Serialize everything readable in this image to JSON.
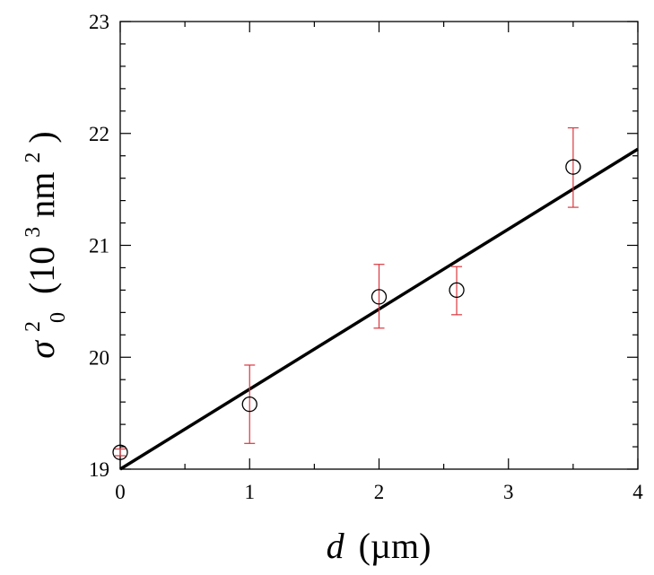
{
  "chart_data": {
    "type": "scatter",
    "title": "",
    "xlabel": {
      "var": "d",
      "unit": "(µm)"
    },
    "ylabel": {
      "base": "σ",
      "sub": "0",
      "sup": "2",
      "unit_open": "(10",
      "unit_exp": "3",
      "unit_mid": " nm",
      "unit_exp2": "2",
      "unit_close": ")"
    },
    "xlim": [
      0,
      4
    ],
    "ylim": [
      19,
      23
    ],
    "xticks": [
      0,
      1,
      2,
      3,
      4
    ],
    "yticks": [
      19,
      20,
      21,
      22,
      23
    ],
    "xtick_labels": [
      "0",
      "1",
      "2",
      "3",
      "4"
    ],
    "ytick_labels": [
      "19",
      "20",
      "21",
      "22",
      "23"
    ],
    "grid": false,
    "legend": "none",
    "series": [
      {
        "kind": "points",
        "marker": "open-circle",
        "x": [
          0,
          1,
          2,
          2.6,
          3.5
        ],
        "y": [
          19.15,
          19.58,
          20.54,
          20.6,
          21.7
        ],
        "err_low": [
          19.12,
          19.23,
          20.26,
          20.38,
          21.34
        ],
        "err_high": [
          19.18,
          19.93,
          20.83,
          20.81,
          22.05
        ]
      },
      {
        "kind": "fit-line",
        "x": [
          0,
          4
        ],
        "y": [
          19.0,
          21.86
        ]
      }
    ],
    "colors": {
      "errorbar": "#d9363e",
      "marker": "#000000",
      "line": "#000000"
    }
  }
}
